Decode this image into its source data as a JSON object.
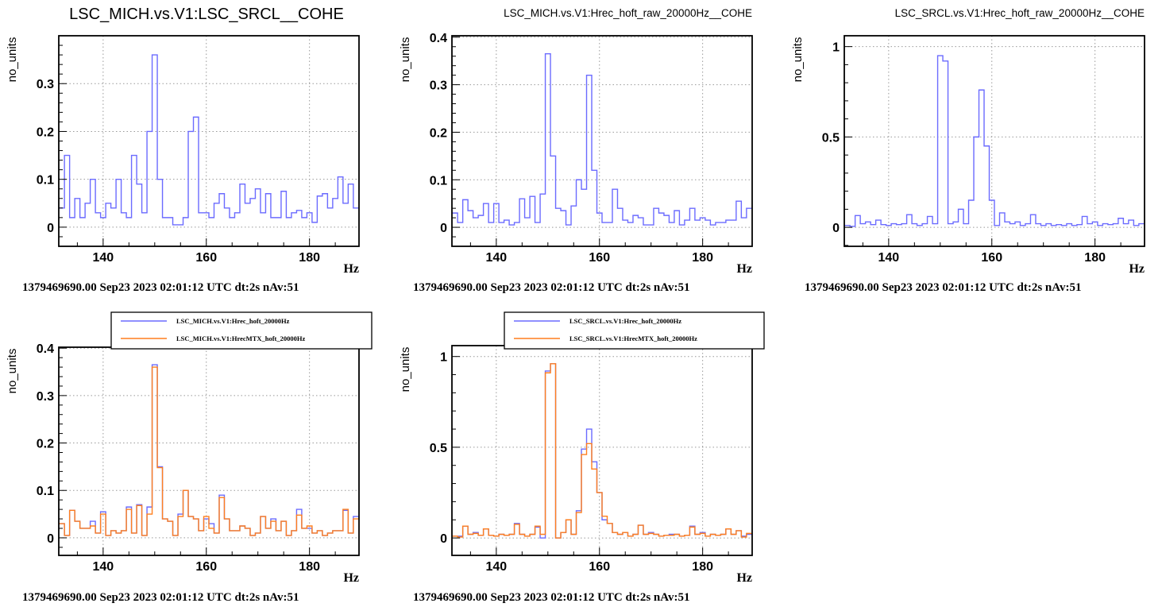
{
  "chart_data": [
    {
      "type": "histogram-step",
      "title": "LSC_MICH.vs.V1:LSC_SRCL__COHE",
      "xlabel": "Hz",
      "ylabel": "no_units",
      "footer": "1379469690.00 Sep23 2023 02:01:12 UTC dt:2s nAv:51",
      "xlim": [
        131.4,
        189.6
      ],
      "ylim": [
        -0.04,
        0.4
      ],
      "xticks": [
        140,
        160,
        180
      ],
      "xtick_labels": [
        "140",
        "160",
        "180"
      ],
      "yticks": [
        0,
        0.1,
        0.2,
        0.3
      ],
      "ytick_labels": [
        "0",
        "0.1",
        "0.2",
        "0.3"
      ],
      "grid": true,
      "bin_width": 1,
      "x_first_center": 132,
      "series": [
        {
          "name": "LSC_MICH.vs.V1:LSC_SRCL__COHE",
          "color": "#6b6bff",
          "values": [
            0.04,
            0.15,
            0.02,
            0.06,
            0.02,
            0.05,
            0.1,
            0.03,
            0.02,
            0.05,
            0.04,
            0.1,
            0.03,
            0.02,
            0.15,
            0.09,
            0.03,
            0.2,
            0.36,
            0.1,
            0.02,
            0.02,
            0.005,
            0.005,
            0.02,
            0.2,
            0.23,
            0.03,
            0.03,
            0.02,
            0.05,
            0.07,
            0.04,
            0.02,
            0.03,
            0.09,
            0.05,
            0.06,
            0.08,
            0.03,
            0.07,
            0.02,
            0.02,
            0.075,
            0.02,
            0.03,
            0.035,
            0.02,
            0.03,
            0.01,
            0.065,
            0.07,
            0.04,
            0.06,
            0.105,
            0.05,
            0.09,
            0.04
          ]
        }
      ]
    },
    {
      "type": "histogram-step",
      "title": "LSC_MICH.vs.V1:Hrec_hoft_raw_20000Hz__COHE",
      "xlabel": "Hz",
      "ylabel": "no_units",
      "footer": "1379469690.00 Sep23 2023 02:01:12 UTC dt:2s nAv:51",
      "xlim": [
        131.4,
        189.6
      ],
      "ylim": [
        -0.04,
        0.403
      ],
      "xticks": [
        140,
        160,
        180
      ],
      "xtick_labels": [
        "140",
        "160",
        "180"
      ],
      "yticks": [
        0,
        0.1,
        0.2,
        0.3,
        0.4
      ],
      "ytick_labels": [
        "0",
        "0.1",
        "0.2",
        "0.3",
        "0.4"
      ],
      "grid": true,
      "bin_width": 1,
      "x_first_center": 132,
      "series": [
        {
          "name": "LSC_MICH.vs.V1:Hrec_hoft_raw_20000Hz__COHE",
          "color": "#6b6bff",
          "values": [
            0.03,
            0.01,
            0.058,
            0.035,
            0.02,
            0.025,
            0.05,
            0.01,
            0.05,
            0.01,
            0.015,
            0.005,
            0.01,
            0.06,
            0.02,
            0.065,
            0.01,
            0.07,
            0.365,
            0.15,
            0.04,
            0.035,
            0.005,
            0.045,
            0.1,
            0.08,
            0.32,
            0.12,
            0.03,
            0.01,
            0.01,
            0.08,
            0.04,
            0.015,
            0.01,
            0.025,
            0.02,
            0.005,
            0.005,
            0.04,
            0.03,
            0.025,
            0.01,
            0.035,
            0.005,
            0.015,
            0.04,
            0.015,
            0.02,
            0.015,
            0.005,
            0.01,
            0.01,
            0.015,
            0.015,
            0.055,
            0.02,
            0.04
          ]
        }
      ]
    },
    {
      "type": "histogram-step",
      "title": "LSC_SRCL.vs.V1:Hrec_hoft_raw_20000Hz__COHE",
      "xlabel": "Hz",
      "ylabel": "no_units",
      "footer": "1379469690.00 Sep23 2023 02:01:12 UTC dt:2s nAv:51",
      "xlim": [
        131.4,
        189.6
      ],
      "ylim": [
        -0.105,
        1.06
      ],
      "xticks": [
        140,
        160,
        180
      ],
      "xtick_labels": [
        "140",
        "160",
        "180"
      ],
      "yticks": [
        0,
        0.5,
        1
      ],
      "ytick_labels": [
        "0",
        "0.5",
        "1"
      ],
      "grid": true,
      "bin_width": 1,
      "x_first_center": 132,
      "series": [
        {
          "name": "LSC_SRCL.vs.V1:Hrec_hoft_raw_20000Hz__COHE",
          "color": "#6b6bff",
          "values": [
            0.01,
            0.005,
            0.065,
            0.02,
            0.03,
            0.015,
            0.04,
            0.015,
            0.01,
            0.02,
            0.015,
            0.02,
            0.07,
            0.02,
            0.01,
            0.02,
            0.06,
            0.02,
            0.95,
            0.92,
            0.02,
            0.03,
            0.1,
            0.02,
            0.15,
            0.5,
            0.76,
            0.45,
            0.15,
            0.01,
            0.08,
            0.03,
            0.02,
            0.03,
            0.01,
            0.02,
            0.07,
            0.02,
            0.01,
            0.02,
            0.01,
            0.015,
            0.01,
            0.02,
            0.01,
            0.015,
            0.06,
            0.02,
            0.03,
            0.01,
            0.02,
            0.015,
            0.02,
            0.05,
            0.02,
            0.04,
            0.01,
            0.02
          ]
        }
      ]
    },
    {
      "type": "histogram-step",
      "title": "",
      "xlabel": "Hz",
      "ylabel": "no_units",
      "footer": "1379469690.00 Sep23 2023 02:01:12 UTC dt:2s nAv:51",
      "xlim": [
        131.4,
        189.6
      ],
      "ylim": [
        -0.037,
        0.402
      ],
      "xticks": [
        140,
        160,
        180
      ],
      "xtick_labels": [
        "140",
        "160",
        "180"
      ],
      "yticks": [
        0,
        0.1,
        0.2,
        0.3,
        0.4
      ],
      "ytick_labels": [
        "0",
        "0.1",
        "0.2",
        "0.3",
        "0.4"
      ],
      "grid": true,
      "legend": "top-right",
      "bin_width": 1,
      "x_first_center": 132,
      "series": [
        {
          "name": "LSC_MICH.vs.V1:Hrec_hoft_20000Hz",
          "color": "#6b6bff",
          "values": [
            0.03,
            0.005,
            0.058,
            0.035,
            0.02,
            0.02,
            0.035,
            0.01,
            0.055,
            0.005,
            0.015,
            0.01,
            0.015,
            0.065,
            0.01,
            0.07,
            0.005,
            0.065,
            0.365,
            0.15,
            0.04,
            0.035,
            0.005,
            0.05,
            0.1,
            0.045,
            0.04,
            0.015,
            0.04,
            0.03,
            0.01,
            0.09,
            0.04,
            0.015,
            0.015,
            0.025,
            0.02,
            0.005,
            0.01,
            0.045,
            0.02,
            0.04,
            0.015,
            0.035,
            0.005,
            0.015,
            0.06,
            0.02,
            0.02,
            0.01,
            0.015,
            0.005,
            0.01,
            0.015,
            0.015,
            0.058,
            0.01,
            0.045
          ]
        },
        {
          "name": "LSC_MICH.vs.V1:HrecMTX_hoft_20000Hz",
          "color": "#ff7f1e",
          "values": [
            0.03,
            0.005,
            0.058,
            0.035,
            0.02,
            0.02,
            0.025,
            0.01,
            0.05,
            0.005,
            0.015,
            0.01,
            0.015,
            0.06,
            0.01,
            0.068,
            0.005,
            0.05,
            0.36,
            0.148,
            0.04,
            0.035,
            0.005,
            0.045,
            0.1,
            0.045,
            0.04,
            0.015,
            0.045,
            0.02,
            0.01,
            0.085,
            0.04,
            0.015,
            0.015,
            0.025,
            0.02,
            0.005,
            0.01,
            0.045,
            0.02,
            0.035,
            0.015,
            0.035,
            0.005,
            0.015,
            0.048,
            0.02,
            0.025,
            0.01,
            0.015,
            0.005,
            0.01,
            0.015,
            0.015,
            0.06,
            0.01,
            0.04
          ]
        }
      ],
      "legend_entries": [
        "LSC_MICH.vs.V1:Hrec_hoft_20000Hz",
        "LSC_MICH.vs.V1:HrecMTX_hoft_20000Hz"
      ]
    },
    {
      "type": "histogram-step",
      "title": "",
      "xlabel": "Hz",
      "ylabel": "no_units",
      "footer": "1379469690.00 Sep23 2023 02:01:12 UTC dt:2s nAv:51",
      "xlim": [
        131.4,
        189.6
      ],
      "ylim": [
        -0.096,
        1.06
      ],
      "xticks": [
        140,
        160,
        180
      ],
      "xtick_labels": [
        "140",
        "160",
        "180"
      ],
      "yticks": [
        0,
        0.5,
        1
      ],
      "ytick_labels": [
        "0",
        "0.5",
        "1"
      ],
      "grid": true,
      "legend": "top-right",
      "bin_width": 1,
      "x_first_center": 132,
      "series": [
        {
          "name": "LSC_SRCL.vs.V1:Hrec_hoft_20000Hz",
          "color": "#6b6bff",
          "values": [
            0.01,
            0.01,
            0.065,
            0.02,
            0.03,
            0.015,
            0.05,
            0.015,
            0.01,
            0.02,
            0.015,
            0.02,
            0.08,
            0.02,
            0.01,
            0.02,
            0.06,
            0.0,
            0.92,
            0.96,
            0.0,
            0.03,
            0.1,
            0.02,
            0.15,
            0.49,
            0.6,
            0.42,
            0.25,
            0.1,
            0.08,
            0.03,
            0.02,
            0.03,
            0.01,
            0.02,
            0.07,
            0.02,
            0.03,
            0.02,
            0.01,
            0.015,
            0.02,
            0.02,
            0.01,
            0.015,
            0.065,
            0.02,
            0.03,
            0.01,
            0.02,
            0.015,
            0.02,
            0.05,
            0.02,
            0.04,
            0.01,
            0.02
          ]
        },
        {
          "name": "LSC_SRCL.vs.V1:HrecMTX_hoft_20000Hz",
          "color": "#ff7f1e",
          "values": [
            0.01,
            0.005,
            0.065,
            0.02,
            0.025,
            0.015,
            0.05,
            0.015,
            0.01,
            0.02,
            0.015,
            0.02,
            0.075,
            0.02,
            0.01,
            0.02,
            0.065,
            0.02,
            0.91,
            0.96,
            0.0,
            0.03,
            0.1,
            0.02,
            0.14,
            0.46,
            0.52,
            0.38,
            0.25,
            0.12,
            0.08,
            0.03,
            0.02,
            0.03,
            0.01,
            0.02,
            0.07,
            0.02,
            0.025,
            0.02,
            0.01,
            0.015,
            0.015,
            0.02,
            0.01,
            0.015,
            0.06,
            0.02,
            0.025,
            0.01,
            0.02,
            0.015,
            0.02,
            0.05,
            0.02,
            0.04,
            0.005,
            0.025
          ]
        }
      ],
      "legend_entries": [
        "LSC_SRCL.vs.V1:Hrec_hoft_20000Hz",
        "LSC_SRCL.vs.V1:HrecMTX_hoft_20000Hz"
      ]
    }
  ]
}
